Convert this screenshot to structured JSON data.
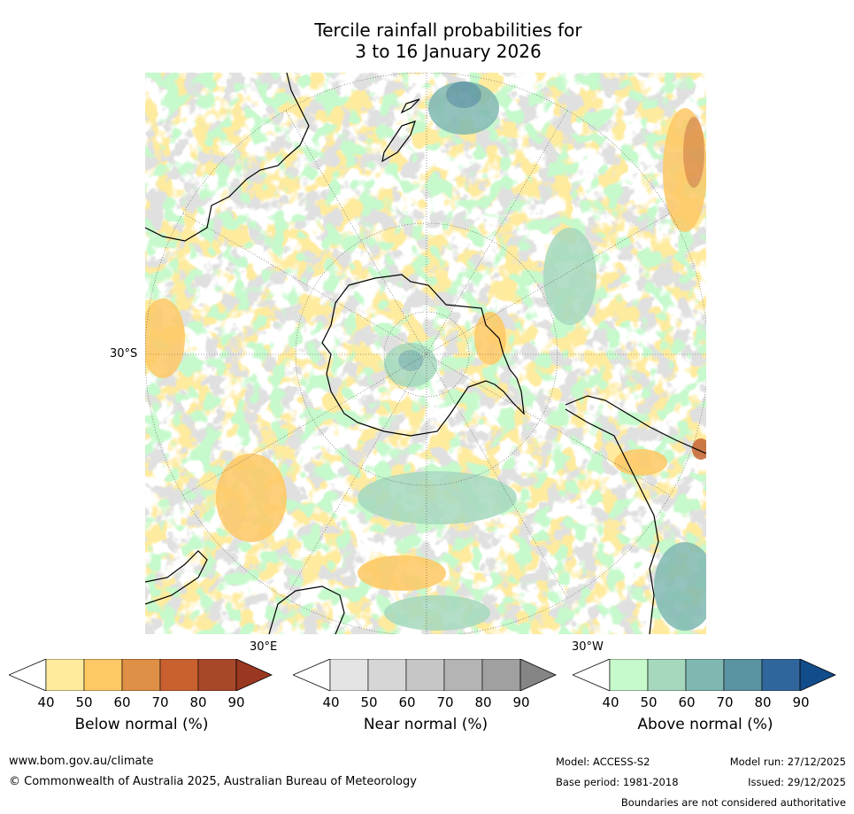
{
  "title_line1": "Tercile rainfall probabilities for",
  "title_line2": "3 to 16 January 2026",
  "map": {
    "lat_label": "30°S",
    "lon_label_east": "30°E",
    "lon_label_west": "30°W"
  },
  "legends": [
    {
      "label": "Below normal (%)",
      "ticks": [
        "40",
        "50",
        "60",
        "70",
        "80",
        "90"
      ],
      "colors": [
        "#ffffff",
        "#feeb9e",
        "#fec864",
        "#df8f46",
        "#c8612f",
        "#a8482a",
        "#9a3720"
      ]
    },
    {
      "label": "Near normal (%)",
      "ticks": [
        "40",
        "50",
        "60",
        "70",
        "80",
        "90"
      ],
      "colors": [
        "#ffffff",
        "#e4e4e4",
        "#d6d6d6",
        "#c6c6c6",
        "#b4b4b4",
        "#a0a0a0",
        "#858585"
      ]
    },
    {
      "label": "Above normal (%)",
      "ticks": [
        "40",
        "50",
        "60",
        "70",
        "80",
        "90"
      ],
      "colors": [
        "#ffffff",
        "#c6f9cc",
        "#a6d8bd",
        "#7fb8b0",
        "#5a93a2",
        "#31669c",
        "#134c8a"
      ]
    }
  ],
  "footer": {
    "website": "www.bom.gov.au/climate",
    "copyright": "© Commonwealth of Australia 2025, Australian Bureau of Meteorology",
    "model": "Model: ACCESS-S2",
    "base_period": "Base period: 1981-2018",
    "model_run": "Model run: 27/12/2025",
    "issued": "Issued: 29/12/2025",
    "disclaimer": "Boundaries are not considered authoritative"
  }
}
